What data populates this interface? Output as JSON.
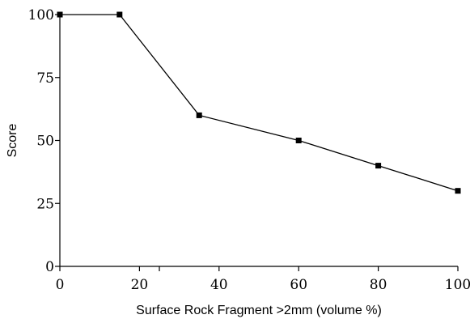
{
  "chart_data": {
    "type": "line",
    "title": "",
    "xlabel": "Surface Rock Fragment >2mm (volume %)",
    "ylabel": "Score",
    "xlim": [
      0,
      100
    ],
    "ylim": [
      0,
      100
    ],
    "xticks": [
      0,
      20,
      40,
      60,
      80,
      100
    ],
    "xticks_minor": [
      25
    ],
    "yticks": [
      0,
      25,
      50,
      75,
      100
    ],
    "grid": false,
    "legend": "none",
    "series": [
      {
        "x": [
          0,
          15,
          35,
          60,
          80,
          100
        ],
        "y": [
          100,
          100,
          60,
          50,
          40,
          30
        ],
        "color": "#000000",
        "marker": "square"
      }
    ]
  }
}
